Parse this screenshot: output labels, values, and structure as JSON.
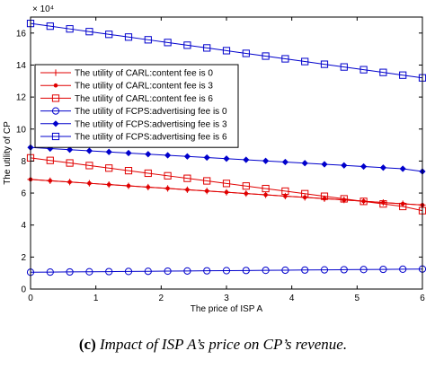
{
  "chart_data": {
    "type": "line",
    "title": "",
    "xlabel": "The price of ISP A",
    "ylabel": "The utility of CP",
    "y_multiplier": "× 10⁴",
    "xlim": [
      0,
      6
    ],
    "ylim": [
      0,
      170000
    ],
    "x_ticks": [
      "0",
      "1",
      "2",
      "3",
      "4",
      "5",
      "6"
    ],
    "y_ticks": [
      "0",
      "2",
      "4",
      "6",
      "8",
      "10",
      "12",
      "14",
      "16"
    ],
    "grid": false,
    "legend_position": "upper-left",
    "x": [
      0,
      0.3,
      0.6,
      0.9,
      1.2,
      1.5,
      1.8,
      2.1,
      2.4,
      2.7,
      3.0,
      3.3,
      3.6,
      3.9,
      4.2,
      4.5,
      4.8,
      5.1,
      5.4,
      5.7,
      6.0
    ],
    "series": [
      {
        "name": "The utility of CARL:content fee is 0",
        "color": "#e00000",
        "marker": "plus",
        "values": [
          68500,
          67700,
          66900,
          66100,
          65300,
          64500,
          63700,
          62900,
          62100,
          61300,
          60500,
          59700,
          58900,
          58100,
          57300,
          56500,
          55700,
          54900,
          54100,
          53300,
          52500
        ]
      },
      {
        "name": "The utility of CARL:content fee is 3",
        "color": "#e00000",
        "marker": "dot",
        "values": [
          68500,
          67700,
          66900,
          66100,
          65300,
          64500,
          63700,
          62900,
          62100,
          61300,
          60500,
          59700,
          58900,
          58100,
          57300,
          56500,
          55700,
          54900,
          54100,
          53300,
          52500
        ]
      },
      {
        "name": "The utility of CARL:content fee is 6",
        "color": "#e00000",
        "marker": "square",
        "values": [
          82000,
          80400,
          78800,
          77200,
          75600,
          74000,
          72400,
          70800,
          69200,
          67600,
          66000,
          64400,
          62800,
          61200,
          59600,
          58000,
          56400,
          54800,
          53200,
          51600,
          49000
        ]
      },
      {
        "name": "The utility of FCPS:advertising fee is 0",
        "color": "#0000cc",
        "marker": "circle",
        "values": [
          10500,
          10600,
          10700,
          10800,
          10900,
          11000,
          11100,
          11200,
          11300,
          11400,
          11500,
          11600,
          11700,
          11800,
          11900,
          12000,
          12100,
          12200,
          12300,
          12400,
          12500
        ]
      },
      {
        "name": "The utility of FCPS:advertising fee is 3",
        "color": "#0000cc",
        "marker": "diamond",
        "values": [
          88500,
          87800,
          87100,
          86400,
          85700,
          85000,
          84300,
          83600,
          82900,
          82200,
          81500,
          80800,
          80100,
          79400,
          78700,
          78000,
          77300,
          76600,
          75900,
          75200,
          73500
        ]
      },
      {
        "name": "The utility of FCPS:advertising fee is 6",
        "color": "#0000cc",
        "marker": "square",
        "values": [
          166000,
          164300,
          162600,
          160900,
          159200,
          157500,
          155800,
          154100,
          152400,
          150700,
          149000,
          147300,
          145600,
          143900,
          142200,
          140500,
          138800,
          137100,
          135400,
          133700,
          132000
        ]
      }
    ]
  },
  "caption": {
    "label": "(c)",
    "text": "Impact of ISP A’s price on CP’s revenue."
  }
}
